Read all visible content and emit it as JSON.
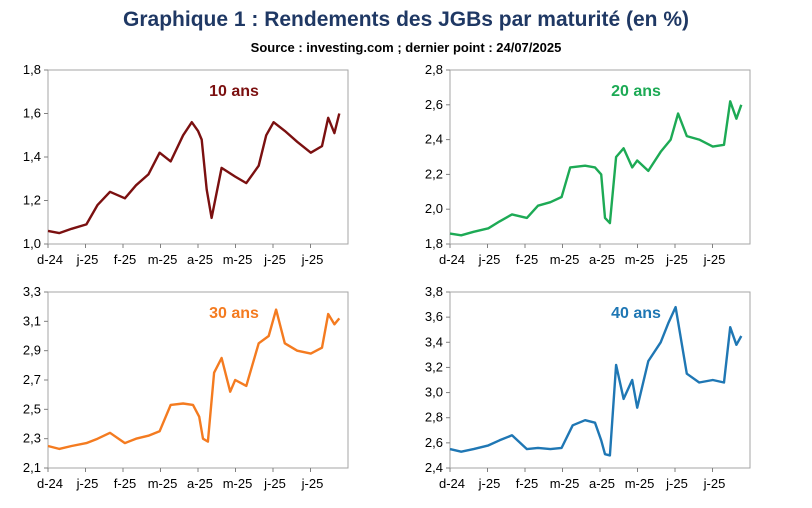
{
  "title": "Graphique 1 : Rendements des JGBs par maturité (en %)",
  "subtitle": "Source : investing.com ; dernier point : 24/07/2025",
  "chart_data": [
    {
      "type": "line",
      "title": "10 ans",
      "color": "#7b1010",
      "ylim": [
        1.0,
        1.8
      ],
      "yticks": [
        "1,0",
        "1,2",
        "1,4",
        "1,6",
        "1,8"
      ],
      "xticks": [
        "d-24",
        "j-25",
        "f-25",
        "m-25",
        "a-25",
        "m-25",
        "j-25",
        "j-25"
      ],
      "x_range": [
        "2024-12-01",
        "2025-07-31"
      ],
      "x": [
        "2024-12-01",
        "2024-12-10",
        "2024-12-20",
        "2025-01-01",
        "2025-01-10",
        "2025-01-20",
        "2025-02-01",
        "2025-02-10",
        "2025-02-20",
        "2025-03-01",
        "2025-03-10",
        "2025-03-20",
        "2025-03-27",
        "2025-04-01",
        "2025-04-04",
        "2025-04-08",
        "2025-04-12",
        "2025-04-20",
        "2025-05-01",
        "2025-05-10",
        "2025-05-20",
        "2025-05-26",
        "2025-06-01",
        "2025-06-10",
        "2025-06-20",
        "2025-07-01",
        "2025-07-10",
        "2025-07-15",
        "2025-07-20",
        "2025-07-24"
      ],
      "y": [
        1.06,
        1.05,
        1.07,
        1.09,
        1.18,
        1.24,
        1.21,
        1.27,
        1.32,
        1.42,
        1.38,
        1.5,
        1.56,
        1.52,
        1.48,
        1.25,
        1.12,
        1.35,
        1.31,
        1.28,
        1.36,
        1.5,
        1.56,
        1.52,
        1.47,
        1.42,
        1.45,
        1.58,
        1.51,
        1.6
      ]
    },
    {
      "type": "line",
      "title": "20 ans",
      "color": "#1daa55",
      "ylim": [
        1.8,
        2.8
      ],
      "yticks": [
        "1,8",
        "2,0",
        "2,2",
        "2,4",
        "2,6",
        "2,8"
      ],
      "xticks": [
        "d-24",
        "j-25",
        "f-25",
        "m-25",
        "a-25",
        "m-25",
        "j-25",
        "j-25"
      ],
      "x_range": [
        "2024-12-01",
        "2025-07-31"
      ],
      "x": [
        "2024-12-01",
        "2024-12-10",
        "2024-12-20",
        "2025-01-01",
        "2025-01-10",
        "2025-01-20",
        "2025-02-01",
        "2025-02-10",
        "2025-02-20",
        "2025-03-01",
        "2025-03-08",
        "2025-03-20",
        "2025-03-28",
        "2025-04-02",
        "2025-04-05",
        "2025-04-09",
        "2025-04-14",
        "2025-04-20",
        "2025-04-27",
        "2025-05-01",
        "2025-05-10",
        "2025-05-20",
        "2025-05-28",
        "2025-06-03",
        "2025-06-10",
        "2025-06-20",
        "2025-07-01",
        "2025-07-10",
        "2025-07-15",
        "2025-07-20",
        "2025-07-24"
      ],
      "y": [
        1.86,
        1.85,
        1.87,
        1.89,
        1.93,
        1.97,
        1.95,
        2.02,
        2.04,
        2.07,
        2.24,
        2.25,
        2.24,
        2.2,
        1.95,
        1.92,
        2.3,
        2.35,
        2.24,
        2.28,
        2.22,
        2.33,
        2.4,
        2.55,
        2.42,
        2.4,
        2.36,
        2.37,
        2.62,
        2.52,
        2.6
      ]
    },
    {
      "type": "line",
      "title": "30 ans",
      "color": "#f47b20",
      "ylim": [
        2.1,
        3.3
      ],
      "yticks": [
        "2,1",
        "2,3",
        "2,5",
        "2,7",
        "2,9",
        "3,1",
        "3,3"
      ],
      "xticks": [
        "d-24",
        "j-25",
        "f-25",
        "m-25",
        "a-25",
        "m-25",
        "j-25",
        "j-25"
      ],
      "x_range": [
        "2024-12-01",
        "2025-07-31"
      ],
      "x": [
        "2024-12-01",
        "2024-12-10",
        "2024-12-20",
        "2025-01-01",
        "2025-01-10",
        "2025-01-20",
        "2025-02-01",
        "2025-02-10",
        "2025-02-20",
        "2025-03-01",
        "2025-03-10",
        "2025-03-20",
        "2025-03-28",
        "2025-04-02",
        "2025-04-05",
        "2025-04-09",
        "2025-04-14",
        "2025-04-20",
        "2025-04-27",
        "2025-05-01",
        "2025-05-10",
        "2025-05-20",
        "2025-05-28",
        "2025-06-03",
        "2025-06-10",
        "2025-06-20",
        "2025-07-01",
        "2025-07-10",
        "2025-07-15",
        "2025-07-20",
        "2025-07-24"
      ],
      "y": [
        2.25,
        2.23,
        2.25,
        2.27,
        2.3,
        2.34,
        2.27,
        2.3,
        2.32,
        2.35,
        2.53,
        2.54,
        2.53,
        2.45,
        2.3,
        2.28,
        2.75,
        2.85,
        2.62,
        2.7,
        2.66,
        2.95,
        3.0,
        3.18,
        2.95,
        2.9,
        2.88,
        2.92,
        3.15,
        3.08,
        3.12
      ]
    },
    {
      "type": "line",
      "title": "40 ans",
      "color": "#1f77b4",
      "ylim": [
        2.4,
        3.8
      ],
      "yticks": [
        "2,4",
        "2,6",
        "2,8",
        "3,0",
        "3,2",
        "3,4",
        "3,6",
        "3,8"
      ],
      "xticks": [
        "d-24",
        "j-25",
        "f-25",
        "m-25",
        "a-25",
        "m-25",
        "j-25",
        "j-25"
      ],
      "x_range": [
        "2024-12-01",
        "2025-07-31"
      ],
      "x": [
        "2024-12-01",
        "2024-12-10",
        "2024-12-20",
        "2025-01-01",
        "2025-01-10",
        "2025-01-20",
        "2025-02-01",
        "2025-02-10",
        "2025-02-20",
        "2025-03-01",
        "2025-03-10",
        "2025-03-20",
        "2025-03-28",
        "2025-04-02",
        "2025-04-05",
        "2025-04-09",
        "2025-04-14",
        "2025-04-20",
        "2025-04-27",
        "2025-05-01",
        "2025-05-10",
        "2025-05-20",
        "2025-05-26",
        "2025-06-01",
        "2025-06-10",
        "2025-06-20",
        "2025-07-01",
        "2025-07-10",
        "2025-07-15",
        "2025-07-20",
        "2025-07-24"
      ],
      "y": [
        2.55,
        2.53,
        2.55,
        2.58,
        2.62,
        2.66,
        2.55,
        2.56,
        2.55,
        2.56,
        2.74,
        2.78,
        2.76,
        2.62,
        2.51,
        2.5,
        3.22,
        2.95,
        3.1,
        2.88,
        3.25,
        3.4,
        3.55,
        3.68,
        3.15,
        3.08,
        3.1,
        3.08,
        3.52,
        3.38,
        3.45
      ]
    }
  ]
}
